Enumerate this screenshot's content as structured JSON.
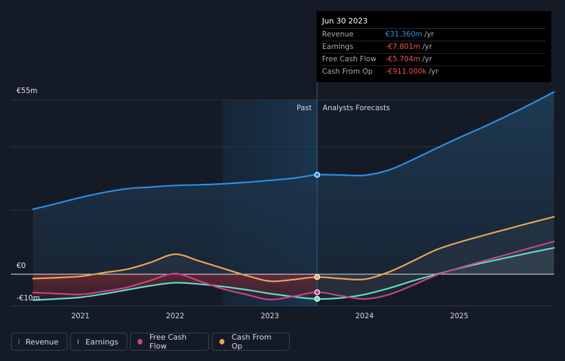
{
  "chart_data": {
    "type": "line",
    "title": "",
    "x_ticks": [
      "2021",
      "2022",
      "2023",
      "2024",
      "2025"
    ],
    "xlim": [
      2020.5,
      2026.0
    ],
    "ylim": [
      -10,
      55
    ],
    "y_labels": {
      "top": "€55m",
      "zero": "€0",
      "bottom": "-€10m"
    },
    "split_x": 2023.5,
    "past_shade_start_x": 2022.5,
    "past_label": "Past",
    "forecast_label": "Analysts Forecasts",
    "series": [
      {
        "name": "Revenue",
        "color": "#2e8fe6",
        "points": [
          [
            2020.5,
            20.5
          ],
          [
            2020.75,
            22.3
          ],
          [
            2021.0,
            24.2
          ],
          [
            2021.25,
            25.8
          ],
          [
            2021.5,
            27.0
          ],
          [
            2021.75,
            27.5
          ],
          [
            2022.0,
            28.0
          ],
          [
            2022.25,
            28.2
          ],
          [
            2022.5,
            28.5
          ],
          [
            2022.75,
            29.0
          ],
          [
            2023.0,
            29.6
          ],
          [
            2023.25,
            30.3
          ],
          [
            2023.5,
            31.36
          ],
          [
            2023.75,
            31.3
          ],
          [
            2024.0,
            31.2
          ],
          [
            2024.25,
            32.8
          ],
          [
            2024.5,
            36.0
          ],
          [
            2024.75,
            39.6
          ],
          [
            2025.0,
            43.1
          ],
          [
            2025.25,
            46.4
          ],
          [
            2025.5,
            49.9
          ],
          [
            2025.75,
            53.6
          ],
          [
            2026.0,
            57.5
          ]
        ]
      },
      {
        "name": "Earnings",
        "color": "#5ee0c8",
        "points": [
          [
            2020.5,
            -8.2
          ],
          [
            2020.75,
            -7.8
          ],
          [
            2021.0,
            -7.3
          ],
          [
            2021.25,
            -6.2
          ],
          [
            2021.5,
            -4.9
          ],
          [
            2021.75,
            -3.6
          ],
          [
            2022.0,
            -2.7
          ],
          [
            2022.25,
            -3.1
          ],
          [
            2022.5,
            -3.9
          ],
          [
            2022.75,
            -4.9
          ],
          [
            2023.0,
            -6.1
          ],
          [
            2023.25,
            -7.1
          ],
          [
            2023.5,
            -7.801
          ],
          [
            2023.75,
            -7.5
          ],
          [
            2024.0,
            -6.4
          ],
          [
            2024.25,
            -4.5
          ],
          [
            2024.5,
            -2.2
          ],
          [
            2024.75,
            -0.1
          ],
          [
            2025.0,
            1.9
          ],
          [
            2025.25,
            3.6
          ],
          [
            2025.5,
            5.2
          ],
          [
            2025.75,
            6.8
          ],
          [
            2026.0,
            8.3
          ]
        ]
      },
      {
        "name": "Free Cash Flow",
        "color": "#c8458a",
        "points": [
          [
            2020.5,
            -5.8
          ],
          [
            2020.75,
            -6.1
          ],
          [
            2021.0,
            -6.4
          ],
          [
            2021.25,
            -5.4
          ],
          [
            2021.5,
            -4.1
          ],
          [
            2021.75,
            -1.9
          ],
          [
            2022.0,
            0.2
          ],
          [
            2022.25,
            -2.1
          ],
          [
            2022.5,
            -4.6
          ],
          [
            2022.75,
            -6.4
          ],
          [
            2023.0,
            -8.0
          ],
          [
            2023.25,
            -7.0
          ],
          [
            2023.5,
            -5.704
          ],
          [
            2023.75,
            -6.8
          ],
          [
            2024.0,
            -7.8
          ],
          [
            2024.25,
            -6.5
          ],
          [
            2024.5,
            -3.6
          ],
          [
            2024.75,
            -0.4
          ],
          [
            2025.0,
            2.0
          ],
          [
            2025.25,
            4.1
          ],
          [
            2025.5,
            6.2
          ],
          [
            2025.75,
            8.3
          ],
          [
            2026.0,
            10.3
          ]
        ]
      },
      {
        "name": "Cash From Op",
        "color": "#e8a85a",
        "points": [
          [
            2020.5,
            -1.4
          ],
          [
            2020.75,
            -1.1
          ],
          [
            2021.0,
            -0.7
          ],
          [
            2021.25,
            0.5
          ],
          [
            2021.5,
            1.6
          ],
          [
            2021.75,
            3.8
          ],
          [
            2022.0,
            6.3
          ],
          [
            2022.25,
            4.2
          ],
          [
            2022.5,
            1.9
          ],
          [
            2022.75,
            -0.4
          ],
          [
            2023.0,
            -2.2
          ],
          [
            2023.25,
            -1.7
          ],
          [
            2023.5,
            -0.911
          ],
          [
            2023.75,
            -1.4
          ],
          [
            2024.0,
            -1.6
          ],
          [
            2024.25,
            0.6
          ],
          [
            2024.5,
            4.0
          ],
          [
            2024.75,
            7.6
          ],
          [
            2025.0,
            10.1
          ],
          [
            2025.25,
            12.2
          ],
          [
            2025.5,
            14.2
          ],
          [
            2025.75,
            16.2
          ],
          [
            2026.0,
            18.1
          ]
        ]
      }
    ]
  },
  "tooltip": {
    "date": "Jun 30 2023",
    "rows": [
      {
        "label": "Revenue",
        "value": "€31.360m",
        "unit": "/yr",
        "color": "#2e8fe6"
      },
      {
        "label": "Earnings",
        "value": "-€7.801m",
        "unit": "/yr",
        "color": "#f0504f"
      },
      {
        "label": "Free Cash Flow",
        "value": "-€5.704m",
        "unit": "/yr",
        "color": "#f0504f"
      },
      {
        "label": "Cash From Op",
        "value": "-€911.000k",
        "unit": "/yr",
        "color": "#f0504f"
      }
    ]
  },
  "legend": [
    {
      "label": "Revenue",
      "color": "#2e8fe6"
    },
    {
      "label": "Earnings",
      "color": "#5ee0c8"
    },
    {
      "label": "Free Cash Flow",
      "color": "#c8458a"
    },
    {
      "label": "Cash From Op",
      "color": "#e8a85a"
    }
  ]
}
